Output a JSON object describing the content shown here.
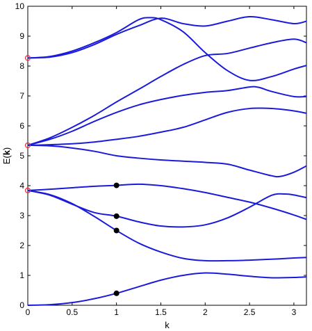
{
  "chart_data": {
    "type": "line",
    "title": "",
    "xlabel": "k",
    "ylabel": "E(k)",
    "ylabel_parts": {
      "prefix": "E(",
      "bold": "k",
      "suffix": ")"
    },
    "xlim": [
      0,
      3.1416
    ],
    "ylim": [
      0,
      10
    ],
    "xticks": [
      0,
      0.5,
      1,
      1.5,
      2,
      2.5,
      3
    ],
    "xtick_labels": [
      "0",
      "0.5",
      "1",
      "1.5",
      "2",
      "2.5",
      "3"
    ],
    "yticks": [
      0,
      1,
      2,
      3,
      4,
      5,
      6,
      7,
      8,
      9,
      10
    ],
    "ytick_labels": [
      "0",
      "1",
      "2",
      "3",
      "4",
      "5",
      "6",
      "7",
      "8",
      "9",
      "10"
    ],
    "grid": false,
    "legend": "none",
    "line_color": "#1a1adb",
    "series": [
      {
        "x": [
          0,
          0.25,
          0.5,
          0.75,
          1.0,
          1.25,
          1.5,
          1.75,
          2.0,
          2.25,
          2.5,
          2.75,
          3.0,
          3.1416
        ],
        "y": [
          0.0,
          0.02,
          0.09,
          0.22,
          0.4,
          0.62,
          0.84,
          1.0,
          1.08,
          1.04,
          0.97,
          0.92,
          0.93,
          0.95
        ]
      },
      {
        "x": [
          0,
          0.25,
          0.5,
          0.75,
          1.0,
          1.25,
          1.5,
          1.75,
          2.0,
          2.25,
          2.5,
          2.75,
          3.0,
          3.1416
        ],
        "y": [
          3.84,
          3.7,
          3.4,
          2.97,
          2.5,
          2.08,
          1.78,
          1.57,
          1.49,
          1.49,
          1.51,
          1.54,
          1.58,
          1.6
        ]
      },
      {
        "x": [
          0,
          0.25,
          0.5,
          0.75,
          1.0,
          1.25,
          1.5,
          1.75,
          2.0,
          2.25,
          2.5,
          2.75,
          2.9,
          3.0,
          3.1416
        ],
        "y": [
          3.84,
          3.68,
          3.38,
          3.1,
          2.98,
          2.79,
          2.65,
          2.62,
          2.69,
          2.92,
          3.28,
          3.68,
          3.72,
          3.69,
          3.6
        ]
      },
      {
        "x": [
          0,
          0.25,
          0.5,
          0.75,
          1.0,
          1.25,
          1.5,
          1.75,
          2.0,
          2.25,
          2.5,
          2.75,
          3.0,
          3.1416
        ],
        "y": [
          3.84,
          3.88,
          3.93,
          3.98,
          4.01,
          4.05,
          4.0,
          3.9,
          3.77,
          3.61,
          3.45,
          3.25,
          3.02,
          2.87
        ]
      },
      {
        "x": [
          0,
          0.25,
          0.5,
          0.75,
          1.0,
          1.25,
          1.5,
          1.75,
          2.0,
          2.25,
          2.5,
          2.75,
          2.85,
          3.0,
          3.1416
        ],
        "y": [
          5.35,
          5.33,
          5.26,
          5.15,
          5.0,
          4.92,
          4.86,
          4.82,
          4.78,
          4.72,
          4.52,
          4.33,
          4.31,
          4.45,
          4.66
        ]
      },
      {
        "x": [
          0,
          0.25,
          0.5,
          0.75,
          1.0,
          1.25,
          1.5,
          1.75,
          2.0,
          2.25,
          2.5,
          2.75,
          3.0,
          3.1416
        ],
        "y": [
          5.35,
          5.37,
          5.4,
          5.46,
          5.55,
          5.65,
          5.79,
          5.95,
          6.2,
          6.45,
          6.58,
          6.58,
          6.5,
          6.42
        ]
      },
      {
        "x": [
          0,
          0.25,
          0.5,
          0.75,
          1.0,
          1.25,
          1.5,
          1.75,
          2.0,
          2.25,
          2.5,
          2.6,
          2.75,
          3.0,
          3.1416
        ],
        "y": [
          5.35,
          5.55,
          5.82,
          6.15,
          6.45,
          6.7,
          6.88,
          7.02,
          7.12,
          7.18,
          7.3,
          7.29,
          7.15,
          6.98,
          6.98
        ]
      },
      {
        "x": [
          0,
          0.25,
          0.5,
          0.75,
          1.0,
          1.25,
          1.5,
          1.75,
          2.0,
          2.25,
          2.5,
          2.75,
          3.0,
          3.1416
        ],
        "y": [
          5.35,
          5.6,
          5.95,
          6.35,
          6.8,
          7.22,
          7.65,
          8.05,
          8.35,
          8.42,
          8.6,
          8.78,
          8.9,
          8.78
        ]
      },
      {
        "x": [
          0,
          0.25,
          0.5,
          0.75,
          1.0,
          1.25,
          1.38,
          1.5,
          1.75,
          2.0,
          2.25,
          2.5,
          2.75,
          3.0,
          3.1416
        ],
        "y": [
          8.27,
          8.32,
          8.5,
          8.78,
          9.12,
          9.55,
          9.62,
          9.55,
          9.15,
          8.45,
          7.85,
          7.52,
          7.65,
          7.9,
          8.02
        ]
      },
      {
        "x": [
          0,
          0.25,
          0.5,
          0.75,
          1.0,
          1.25,
          1.5,
          1.75,
          2.0,
          2.25,
          2.5,
          2.75,
          3.0,
          3.1416
        ],
        "y": [
          8.27,
          8.3,
          8.45,
          8.72,
          9.06,
          9.35,
          9.6,
          9.42,
          9.34,
          9.5,
          9.65,
          9.55,
          9.42,
          9.5
        ]
      }
    ],
    "markers_black": [
      {
        "x": 1.0,
        "y": 0.4
      },
      {
        "x": 1.0,
        "y": 2.5
      },
      {
        "x": 1.0,
        "y": 2.98
      },
      {
        "x": 1.0,
        "y": 4.01
      }
    ],
    "markers_red_open": [
      {
        "x": 0,
        "y": 3.84
      },
      {
        "x": 0,
        "y": 5.35
      },
      {
        "x": 0,
        "y": 8.27
      }
    ]
  }
}
